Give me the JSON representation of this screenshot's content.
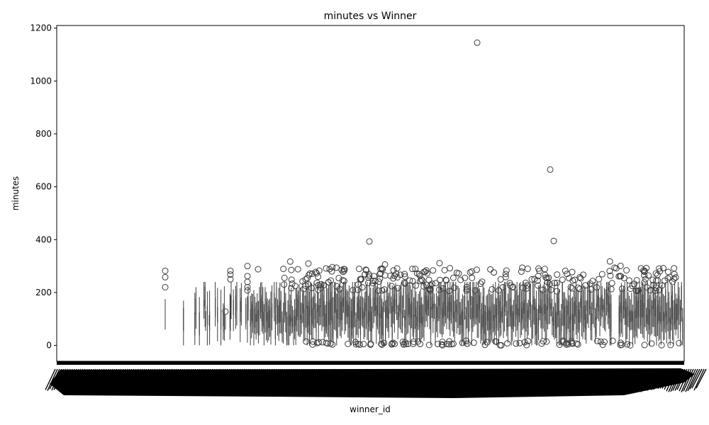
{
  "chart_data": {
    "type": "box",
    "title": "minutes vs Winner",
    "xlabel": "winner_id",
    "ylabel": "minutes",
    "ylim": [
      -60,
      1210
    ],
    "yticks": [
      0,
      200,
      400,
      600,
      800,
      1000,
      1200
    ],
    "grid": false,
    "legend": "none",
    "box_color": "#3d3d3d",
    "x_tick_labels_overlapping": true,
    "notable_outliers": [
      1145,
      665,
      395,
      393
    ]
  }
}
